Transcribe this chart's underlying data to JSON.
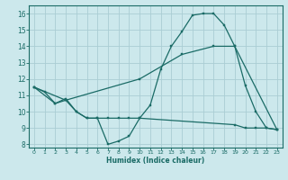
{
  "xlabel": "Humidex (Indice chaleur)",
  "bg_color": "#cce8ec",
  "grid_color": "#aacdd4",
  "line_color": "#1a6b66",
  "xlim_min": -0.5,
  "xlim_max": 23.5,
  "ylim_min": 7.8,
  "ylim_max": 16.5,
  "xticks": [
    0,
    1,
    2,
    3,
    4,
    5,
    6,
    7,
    8,
    9,
    10,
    11,
    12,
    13,
    14,
    15,
    16,
    17,
    18,
    19,
    20,
    21,
    22,
    23
  ],
  "yticks": [
    8,
    9,
    10,
    11,
    12,
    13,
    14,
    15,
    16
  ],
  "line1_x": [
    0,
    1,
    2,
    3,
    4,
    5,
    6,
    7,
    8,
    9,
    10,
    11,
    12,
    13,
    14,
    15,
    16,
    17,
    18,
    19,
    20,
    21,
    22,
    23
  ],
  "line1_y": [
    11.5,
    11.2,
    10.5,
    10.8,
    10.0,
    9.6,
    9.6,
    8.0,
    8.2,
    8.5,
    9.6,
    10.4,
    12.6,
    14.0,
    14.9,
    15.9,
    16.0,
    16.0,
    15.3,
    14.0,
    11.6,
    10.0,
    9.0,
    8.9
  ],
  "line2_x": [
    0,
    2,
    3,
    4,
    5,
    6,
    7,
    8,
    9,
    10,
    19,
    20,
    21,
    22,
    23
  ],
  "line2_y": [
    11.5,
    10.5,
    10.7,
    10.0,
    9.6,
    9.6,
    9.6,
    9.6,
    9.6,
    9.6,
    9.2,
    9.0,
    9.0,
    9.0,
    8.9
  ],
  "line3_x": [
    0,
    3,
    10,
    14,
    17,
    19,
    23
  ],
  "line3_y": [
    11.5,
    10.7,
    12.0,
    13.5,
    14.0,
    14.0,
    8.9
  ]
}
